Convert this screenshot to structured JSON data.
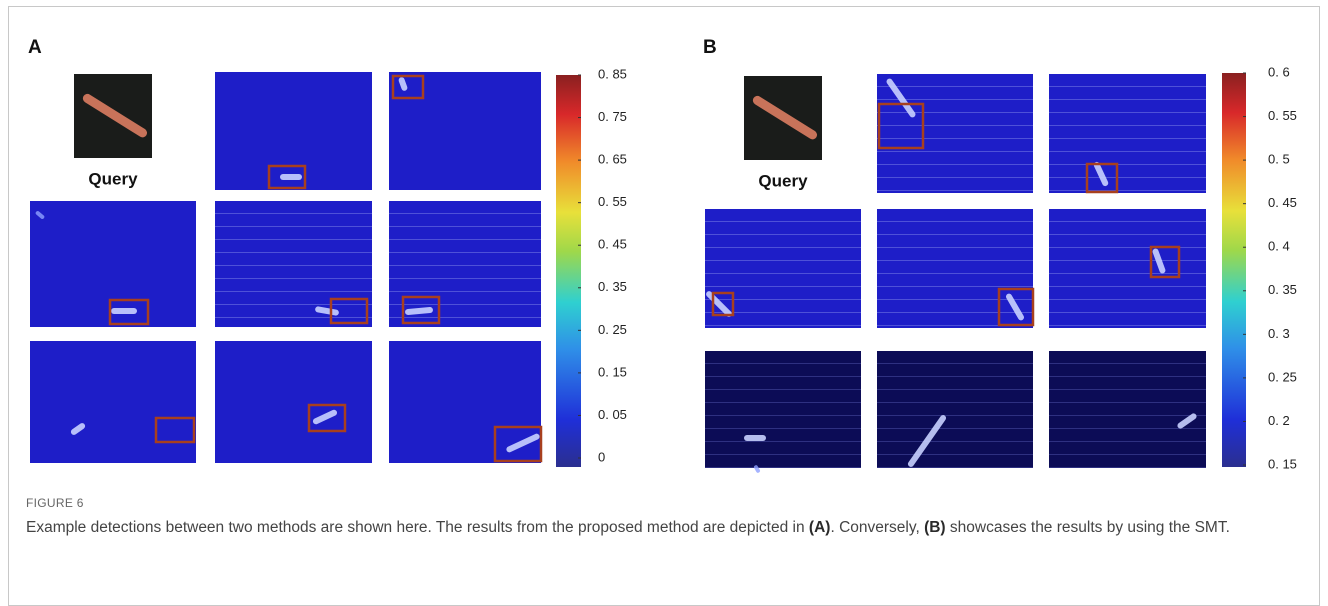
{
  "figure": {
    "panels": [
      {
        "label": "A",
        "query_label": "Query",
        "colorbar_ticks": [
          "0. 85",
          "0. 75",
          "0. 65",
          "0. 55",
          "0. 45",
          "0. 35",
          "0. 25",
          "0. 15",
          "0. 05",
          "0"
        ]
      },
      {
        "label": "B",
        "query_label": "Query",
        "colorbar_ticks": [
          "0. 6",
          "0. 55",
          "0. 5",
          "0. 45",
          "0. 4",
          "0. 35",
          "0. 3",
          "0. 25",
          "0. 2",
          "0. 15"
        ]
      }
    ],
    "caption": {
      "label": "FIGURE 6",
      "text": [
        "Example detections between two methods are shown here. The results from the proposed method are depicted in ",
        "(A)",
        ". Conversely, ",
        "(B)",
        " showcases the results by using the SMT."
      ]
    }
  }
}
